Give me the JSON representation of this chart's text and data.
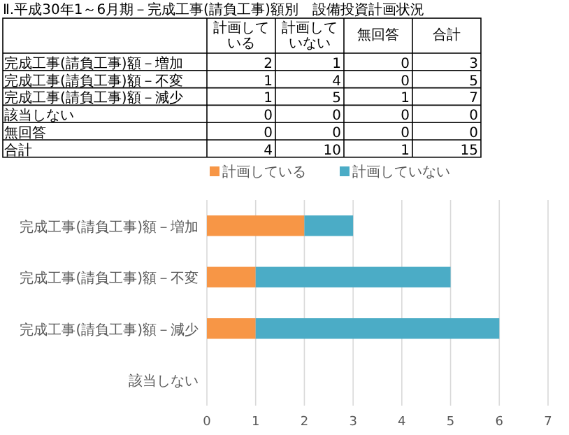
{
  "chart_data": [
    {
      "type": "heatmap",
      "title": "Ⅱ.平成30年1～6月期－完成工事(請負工事)額別　設備投資計画状況",
      "categories": [
        "計画している",
        "計画していない",
        "無回答",
        "合計"
      ],
      "y_categories": [
        "完成工事(請負工事)額－増加",
        "完成工事(請負工事)額－不変",
        "完成工事(請負工事)額－減少",
        "該当しない",
        "無回答",
        "合計"
      ],
      "cells": [
        [
          2,
          1,
          0,
          3
        ],
        [
          1,
          4,
          0,
          5
        ],
        [
          1,
          5,
          1,
          7
        ],
        [
          0,
          0,
          0,
          0
        ],
        [
          0,
          0,
          0,
          0
        ],
        [
          4,
          10,
          1,
          15
        ]
      ],
      "data_labels": true,
      "grid": true
    },
    {
      "type": "bar",
      "orientation": "horizontal",
      "stacked": true,
      "categories": [
        "完成工事(請負工事)額－増加",
        "完成工事(請負工事)額－不変",
        "完成工事(請負工事)額－減少",
        "該当しない"
      ],
      "series": [
        {
          "name": "計画している",
          "color": "#f79646",
          "values": [
            2,
            1,
            1,
            0
          ]
        },
        {
          "name": "計画していない",
          "color": "#4bacc6",
          "values": [
            1,
            4,
            5,
            0
          ]
        }
      ],
      "xlim": [
        0,
        7
      ],
      "xticks": [
        0,
        1,
        2,
        3,
        4,
        5,
        6,
        7
      ],
      "grid": "x",
      "legend": "top"
    }
  ]
}
